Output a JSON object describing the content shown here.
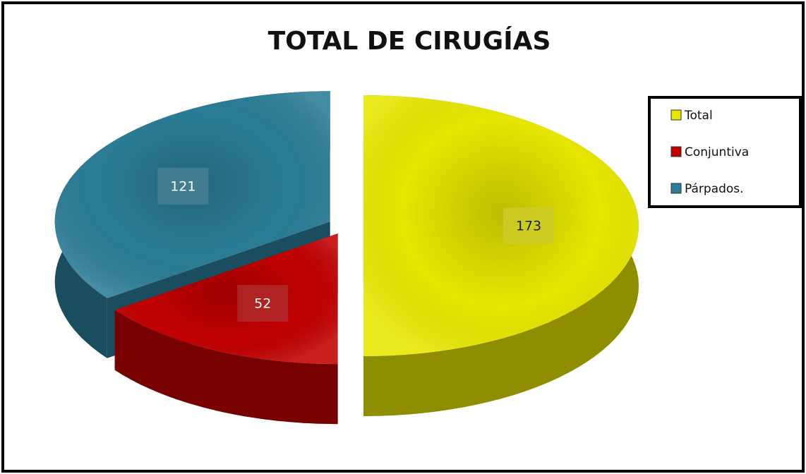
{
  "chart_data": {
    "type": "pie",
    "title": "TOTAL DE CIRUGÍAS",
    "categories": [
      "Total",
      "Conjuntiva",
      "Párpados."
    ],
    "values": [
      173,
      52,
      121
    ],
    "colors": [
      "#e6e600",
      "#c00000",
      "#2b7c96"
    ],
    "legend": "right"
  }
}
